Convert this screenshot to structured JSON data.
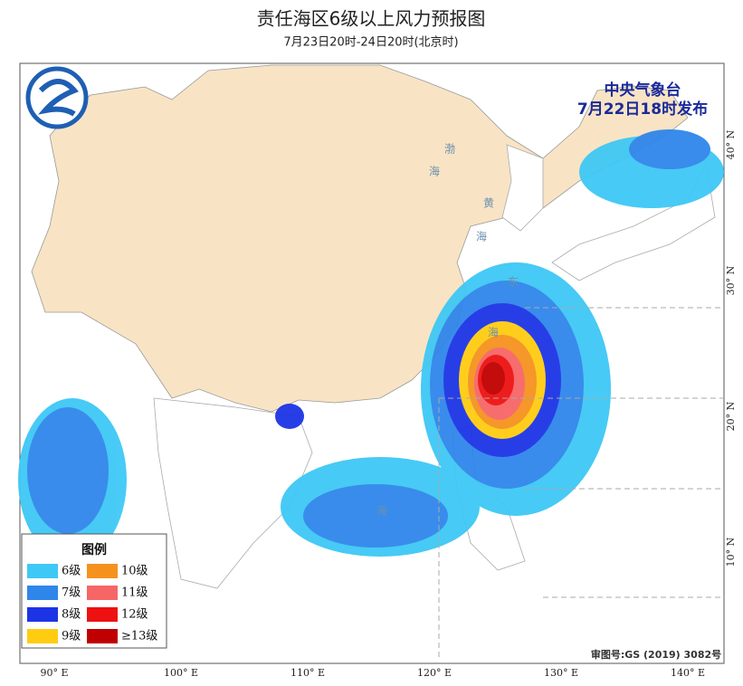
{
  "header": {
    "title": "责任海区6级以上风力预报图",
    "subtitle": "7月23日20时-24日20时(北京时)"
  },
  "issuer": {
    "name": "中央气象台",
    "time": "7月22日18时发布"
  },
  "legend": {
    "title": "图例",
    "items": [
      {
        "label": "6级",
        "color": "#3ec8f5"
      },
      {
        "label": "10级",
        "color": "#f5921e"
      },
      {
        "label": "7级",
        "color": "#2f86ea"
      },
      {
        "label": "11级",
        "color": "#f76666"
      },
      {
        "label": "8级",
        "color": "#1c34e6"
      },
      {
        "label": "12级",
        "color": "#ee1111"
      },
      {
        "label": "9级",
        "color": "#ffcc11"
      },
      {
        "label": "≥13级",
        "color": "#c00000"
      }
    ]
  },
  "lon_labels": [
    "90° E",
    "100° E",
    "110° E",
    "120° E",
    "130° E",
    "140° E"
  ],
  "lat_labels": [
    "40° N",
    "30° N",
    "20° N",
    "10° N"
  ],
  "sea_labels": [
    "渤",
    "海",
    "黄",
    "海",
    "东",
    "海",
    "海"
  ],
  "footer": "审图号:GS (2019) 3082号"
}
